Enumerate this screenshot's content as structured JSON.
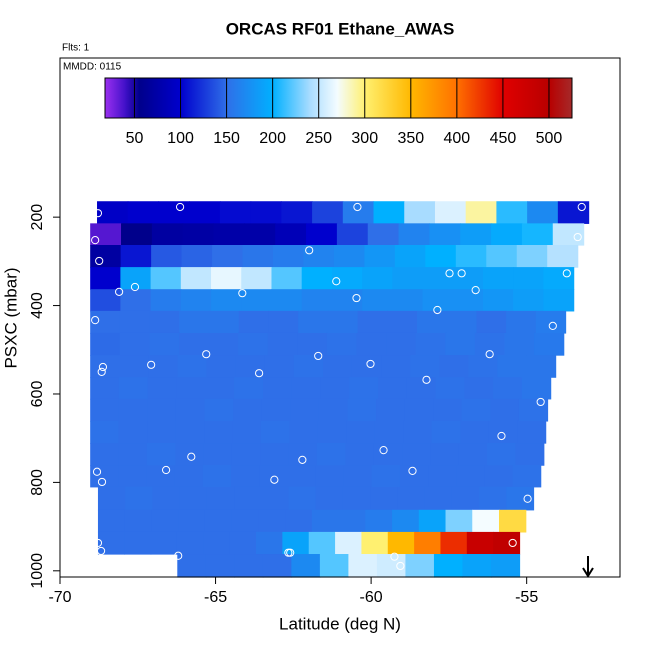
{
  "chart_data": {
    "type": "heatmap",
    "title": "ORCAS RF01 Ethane_AWAS",
    "annotations": [
      "Flts: 1",
      "MMDD: 0115"
    ],
    "x_label": "Latitude (deg N)",
    "y_label": "PSXC (mbar)",
    "xlim": [
      -70,
      -52
    ],
    "xticks": [
      -70,
      -65,
      -60,
      -55
    ],
    "ylim": [
      1014,
      -160
    ],
    "yticks": [
      200,
      400,
      600,
      800,
      1000
    ],
    "colorbar": {
      "lim": [
        18,
        525
      ],
      "ticks": [
        50,
        100,
        150,
        200,
        250,
        300,
        350,
        400,
        450,
        500
      ],
      "stops": [
        {
          "value": 18,
          "color": "#9b30f0"
        },
        {
          "value": 40,
          "color": "#4010c8"
        },
        {
          "value": 55,
          "color": "#00008b"
        },
        {
          "value": 100,
          "color": "#0000cd"
        },
        {
          "value": 150,
          "color": "#2f6fe8"
        },
        {
          "value": 200,
          "color": "#00b0ff"
        },
        {
          "value": 240,
          "color": "#a8dcff"
        },
        {
          "value": 270,
          "color": "#f4fcff"
        },
        {
          "value": 300,
          "color": "#fff070"
        },
        {
          "value": 350,
          "color": "#ffb800"
        },
        {
          "value": 400,
          "color": "#ff7000"
        },
        {
          "value": 450,
          "color": "#e00000"
        },
        {
          "value": 500,
          "color": "#b80000"
        },
        {
          "value": 525,
          "color": "#a52a2a"
        }
      ]
    },
    "rows": [
      {
        "pressure": [
          164,
          214
        ],
        "latitude": [
          -68.81,
          -53.01
        ],
        "values": [
          95,
          100,
          100,
          100,
          105,
          105,
          110,
          130,
          160,
          200,
          240,
          260,
          290,
          210,
          170,
          110
        ]
      },
      {
        "pressure": [
          214,
          263
        ],
        "latitude": [
          -69.03,
          -53.17
        ],
        "values": [
          35,
          55,
          70,
          72,
          75,
          75,
          85,
          100,
          130,
          150,
          165,
          175,
          185,
          195,
          205,
          250
        ]
      },
      {
        "pressure": [
          263,
          313
        ],
        "latitude": [
          -69.03,
          -53.36
        ],
        "values": [
          70,
          110,
          140,
          145,
          150,
          155,
          160,
          165,
          170,
          180,
          190,
          200,
          210,
          220,
          230,
          245
        ]
      },
      {
        "pressure": [
          313,
          363
        ],
        "latitude": [
          -69.03,
          -53.49
        ],
        "values": [
          100,
          190,
          220,
          250,
          265,
          250,
          220,
          200,
          195,
          190,
          185,
          185,
          185,
          190,
          190,
          195
        ]
      },
      {
        "pressure": [
          363,
          412
        ],
        "latitude": [
          -69.03,
          -53.49
        ],
        "values": [
          135,
          150,
          160,
          165,
          170,
          170,
          170,
          165,
          165,
          170,
          170,
          175,
          175,
          180,
          185,
          190
        ]
      },
      {
        "pressure": [
          412,
          462
        ],
        "latitude": [
          -69.03,
          -53.75
        ],
        "values": [
          150,
          150,
          150,
          155,
          155,
          150,
          150,
          155,
          155,
          150,
          150,
          155,
          155,
          150,
          155,
          160
        ]
      },
      {
        "pressure": [
          462,
          512
        ],
        "latitude": [
          -69.03,
          -53.81
        ],
        "values": [
          148,
          150,
          152,
          150,
          150,
          152,
          150,
          150,
          152,
          150,
          150,
          152,
          155,
          152,
          155,
          158
        ]
      },
      {
        "pressure": [
          512,
          562
        ],
        "latitude": [
          -69.03,
          -54.07
        ],
        "values": [
          150,
          150,
          150,
          152,
          150,
          150,
          150,
          152,
          150,
          150,
          150,
          152,
          150,
          152,
          155,
          155
        ]
      },
      {
        "pressure": [
          562,
          611
        ],
        "latitude": [
          -69.03,
          -54.23
        ],
        "values": [
          150,
          152,
          150,
          150,
          150,
          152,
          150,
          150,
          150,
          152,
          150,
          150,
          152,
          150,
          152,
          155
        ]
      },
      {
        "pressure": [
          611,
          661
        ],
        "latitude": [
          -69.03,
          -54.33
        ],
        "values": [
          150,
          150,
          150,
          150,
          152,
          150,
          150,
          150,
          150,
          152,
          150,
          150,
          150,
          152,
          150,
          152
        ]
      },
      {
        "pressure": [
          661,
          711
        ],
        "latitude": [
          -69.03,
          -54.39
        ],
        "values": [
          152,
          150,
          150,
          150,
          150,
          150,
          152,
          150,
          150,
          150,
          150,
          150,
          152,
          150,
          150,
          150
        ]
      },
      {
        "pressure": [
          711,
          761
        ],
        "latitude": [
          -69.03,
          -54.45
        ],
        "values": [
          150,
          150,
          152,
          150,
          150,
          150,
          150,
          150,
          152,
          150,
          150,
          150,
          150,
          150,
          152,
          150
        ]
      },
      {
        "pressure": [
          761,
          810
        ],
        "latitude": [
          -69.03,
          -54.55
        ],
        "values": [
          150,
          150,
          150,
          150,
          152,
          150,
          150,
          150,
          150,
          150,
          152,
          150,
          150,
          150,
          150,
          152
        ]
      },
      {
        "pressure": [
          810,
          862
        ],
        "latitude": [
          -68.78,
          -54.78
        ],
        "values": [
          150,
          152,
          150,
          150,
          150,
          150,
          150,
          152,
          150,
          150,
          150,
          150,
          150,
          150,
          152,
          155
        ]
      },
      {
        "pressure": [
          862,
          912
        ],
        "latitude": [
          -68.78,
          -55.03
        ],
        "values": [
          150,
          150,
          150,
          150,
          150,
          150,
          150,
          150,
          155,
          155,
          160,
          170,
          190,
          230,
          270,
          320
        ]
      },
      {
        "pressure": [
          912,
          962
        ],
        "latitude": [
          -68.78,
          -55.23
        ],
        "values": [
          150,
          150,
          150,
          150,
          150,
          150,
          155,
          190,
          220,
          260,
          300,
          350,
          390,
          430,
          480,
          490
        ]
      },
      {
        "pressure": [
          962,
          1014
        ],
        "latitude": [
          -66.23,
          -55.23
        ],
        "values": [
          150,
          150,
          150,
          150,
          170,
          220,
          260,
          255,
          230,
          200,
          190,
          185
        ]
      }
    ],
    "samples": {
      "x": [
        -68.78,
        -66.14,
        -60.44,
        -53.23,
        -68.87,
        -53.36,
        -68.74,
        -61.99,
        -68.1,
        -67.59,
        -64.14,
        -61.12,
        -57.48,
        -57.09,
        -56.64,
        -60.47,
        -57.87,
        -53.71,
        -54.16,
        -68.87,
        -68.62,
        -68.66,
        -67.07,
        -65.3,
        -63.6,
        -61.7,
        -60.02,
        -56.19,
        -58.22,
        -54.55,
        -55.81,
        -59.6,
        -68.81,
        -66.59,
        -65.78,
        -62.21,
        -58.67,
        -68.65,
        -63.11,
        -54.97,
        -68.78,
        -68.68,
        -66.2,
        -62.66,
        -62.6,
        -59.25,
        -59.06,
        -55.45
      ],
      "y": [
        191,
        177,
        177,
        177,
        252,
        245,
        299,
        275,
        369,
        358,
        372,
        345,
        327,
        327,
        365,
        383,
        410,
        327,
        446,
        433,
        539,
        550,
        534,
        510,
        553,
        514,
        532,
        510,
        568,
        618,
        695,
        727,
        776,
        772,
        742,
        749,
        774,
        799,
        794,
        837,
        937,
        955,
        966,
        959,
        959,
        968,
        989,
        937
      ]
    }
  }
}
